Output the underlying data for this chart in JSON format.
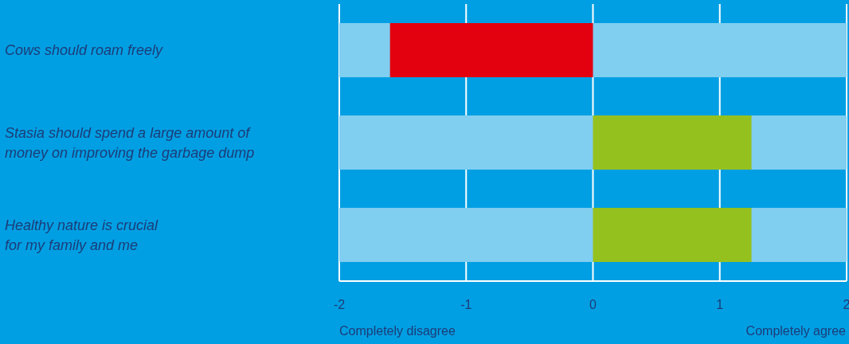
{
  "chart_data": {
    "type": "bar",
    "orientation": "horizontal",
    "categories": [
      "Cows should roam freely",
      "Stasia should spend a large amount of\nmoney on improving the garbage dump",
      "Healthy nature is crucial\nfor my family and me"
    ],
    "series": [
      {
        "color": "#80cef0",
        "values": [
          4,
          4,
          4
        ],
        "base": [
          -2,
          -2,
          -2
        ]
      },
      {
        "colors": [
          "#e3000f",
          "#95c11f",
          "#95c11f"
        ],
        "values": [
          -1.6,
          1.25,
          1.25
        ]
      }
    ],
    "xlim": [
      -2,
      2
    ],
    "xticks": [
      -2,
      -1,
      0,
      1,
      2
    ],
    "grid": "x",
    "annotations": [
      "Completely disagree",
      "Completely agree"
    ]
  }
}
